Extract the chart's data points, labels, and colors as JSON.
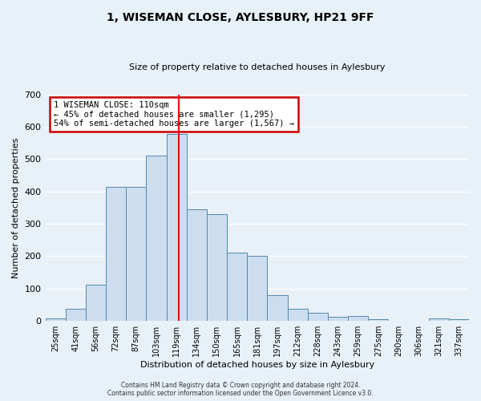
{
  "title": "1, WISEMAN CLOSE, AYLESBURY, HP21 9FF",
  "subtitle": "Size of property relative to detached houses in Aylesbury",
  "xlabel": "Distribution of detached houses by size in Aylesbury",
  "ylabel": "Number of detached properties",
  "bar_color": "#ccddf0",
  "bar_edge_color": "#5588aa",
  "background_color": "#e8f0f8",
  "grid_color": "#ffffff",
  "categories": [
    "25sqm",
    "41sqm",
    "56sqm",
    "72sqm",
    "87sqm",
    "103sqm",
    "119sqm",
    "134sqm",
    "150sqm",
    "165sqm",
    "181sqm",
    "197sqm",
    "212sqm",
    "228sqm",
    "243sqm",
    "259sqm",
    "275sqm",
    "290sqm",
    "306sqm",
    "321sqm",
    "337sqm"
  ],
  "values": [
    8,
    38,
    112,
    415,
    415,
    510,
    578,
    345,
    330,
    210,
    200,
    80,
    37,
    25,
    12,
    14,
    5,
    0,
    0,
    8,
    6
  ],
  "ylim": [
    0,
    700
  ],
  "yticks": [
    0,
    100,
    200,
    300,
    400,
    500,
    600,
    700
  ],
  "property_label": "1 WISEMAN CLOSE: 110sqm",
  "annotation_line1": "← 45% of detached houses are smaller (1,295)",
  "annotation_line2": "54% of semi-detached houses are larger (1,567) →",
  "red_line_x": 6.1,
  "annotation_box_color": "#ffffff",
  "annotation_border_color": "#cc0000",
  "footer_line1": "Contains HM Land Registry data © Crown copyright and database right 2024.",
  "footer_line2": "Contains public sector information licensed under the Open Government Licence v3.0."
}
